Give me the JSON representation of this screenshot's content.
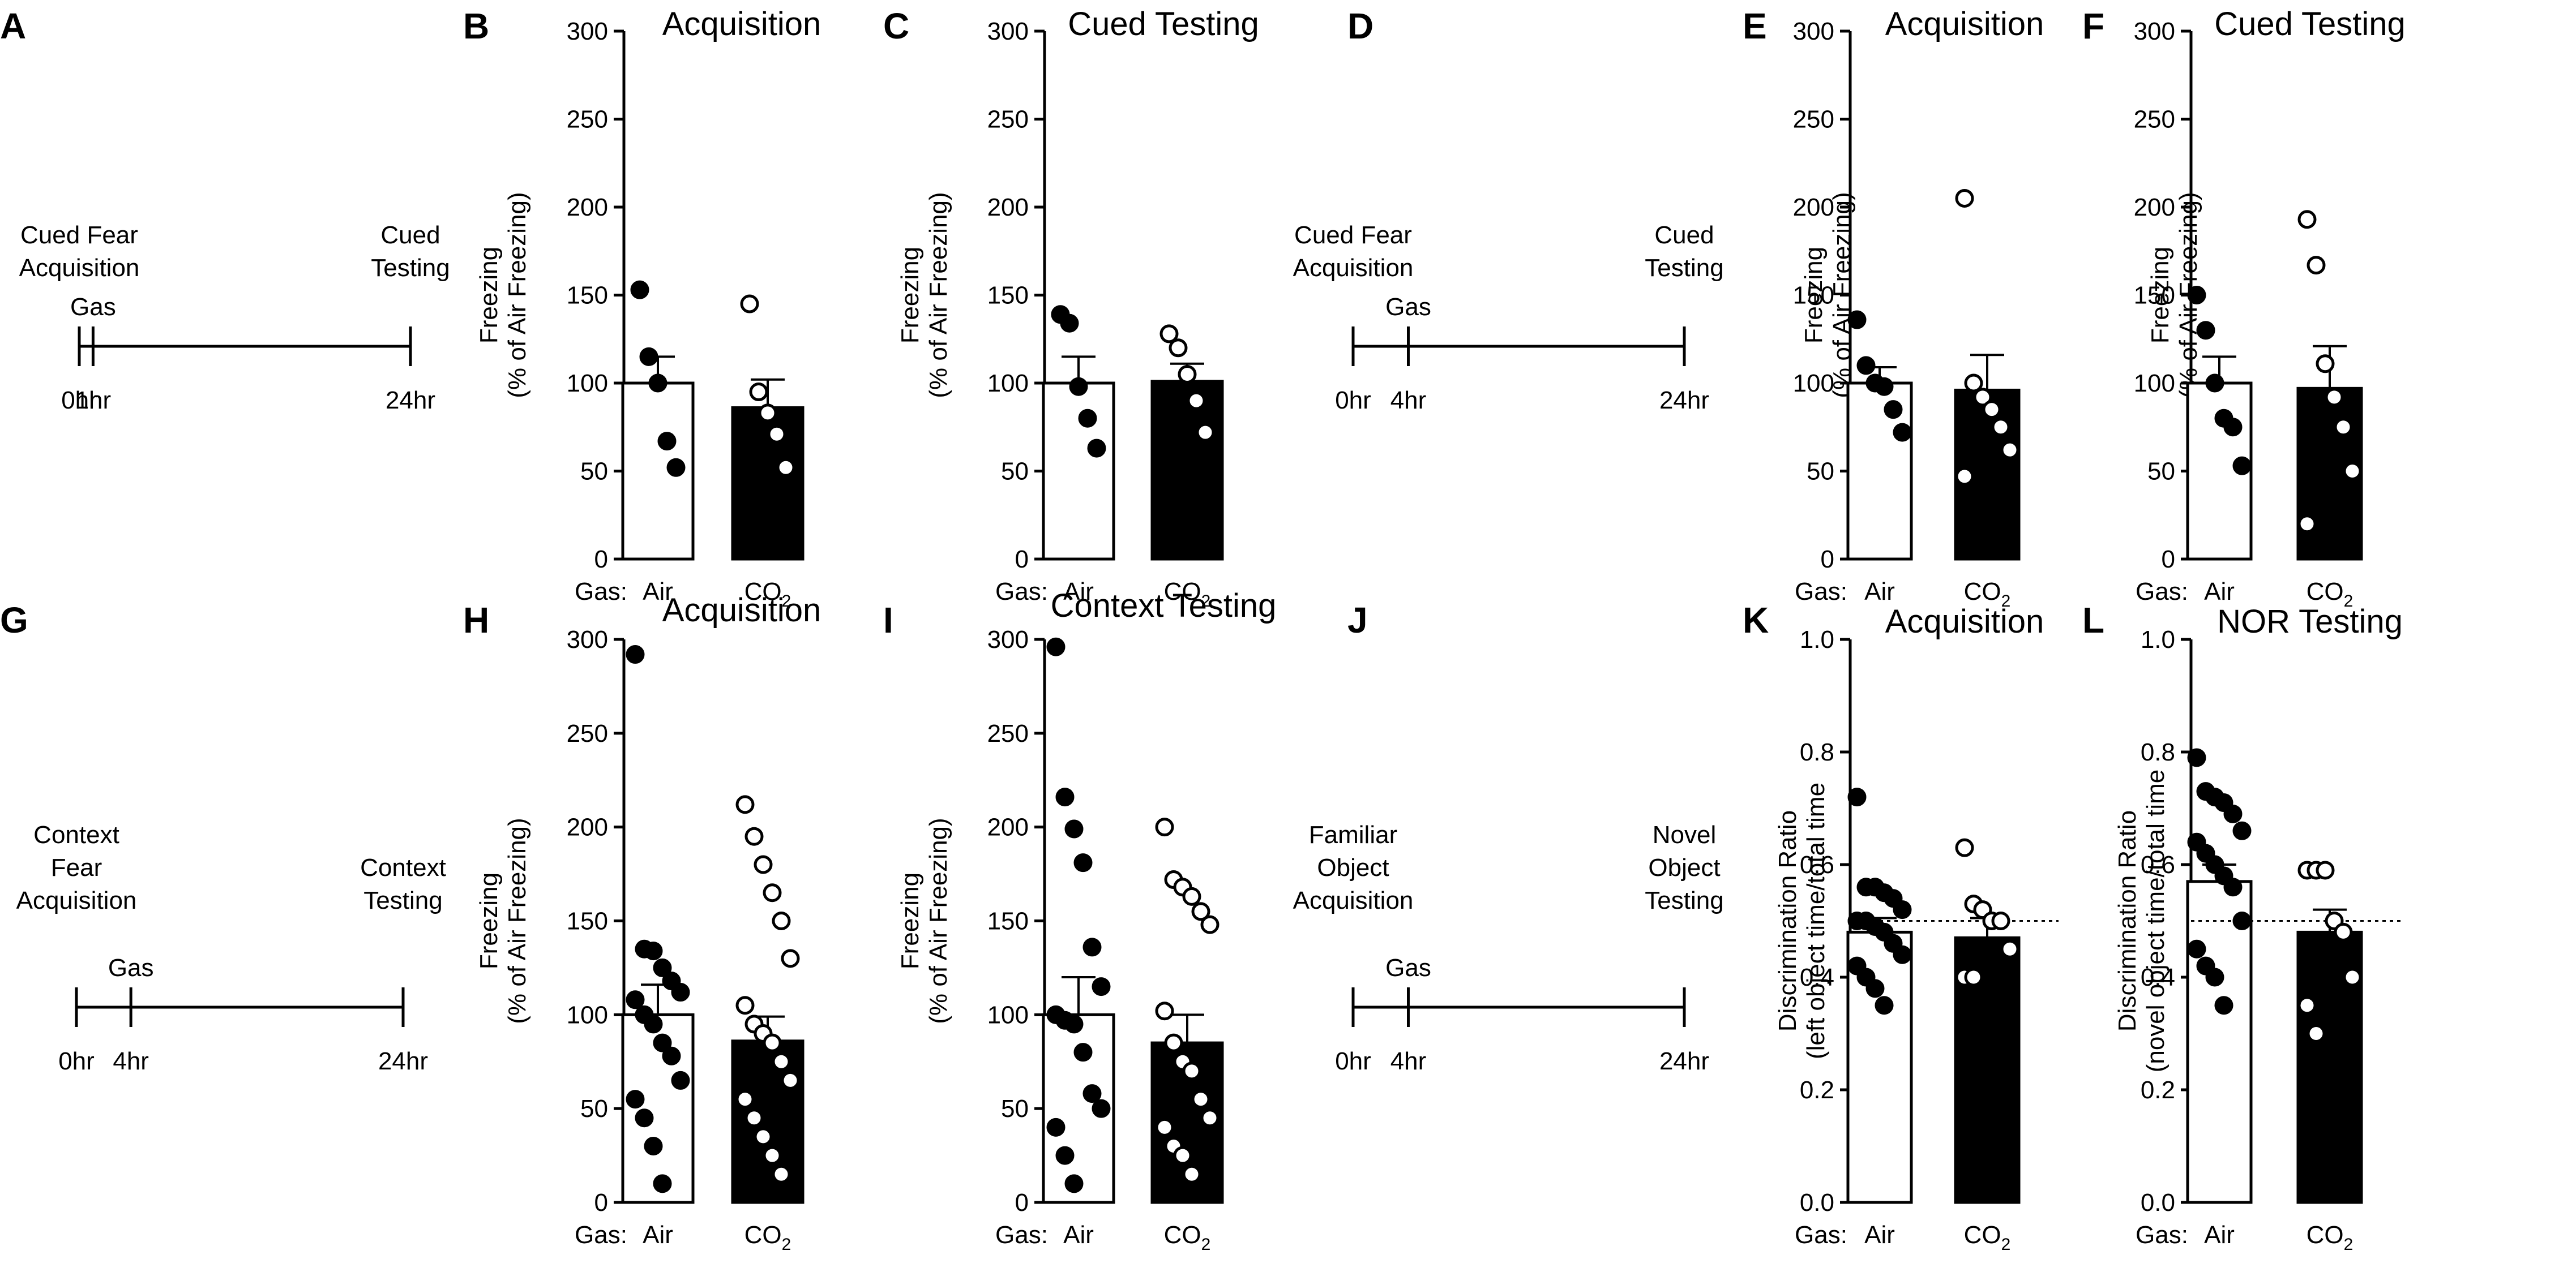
{
  "gas_label": "Gas:",
  "panels": {
    "A": {
      "label": "A"
    },
    "D": {
      "label": "D"
    },
    "G": {
      "label": "G"
    },
    "J": {
      "label": "J"
    }
  },
  "timelines": [
    {
      "panel": "A",
      "left_text": [
        "Cued Fear",
        "Acquisition"
      ],
      "right_text": [
        "Cued",
        "Testing"
      ],
      "gas": "Gas",
      "ticks": [
        {
          "pos": 0,
          "label": "0hr"
        },
        {
          "pos": 1,
          "label": "1hr"
        },
        {
          "pos": 24,
          "label": "24hr"
        }
      ]
    },
    {
      "panel": "D",
      "left_text": [
        "Cued Fear",
        "Acquisition"
      ],
      "right_text": [
        "Cued",
        "Testing"
      ],
      "gas": "Gas",
      "ticks": [
        {
          "pos": 0,
          "label": "0hr"
        },
        {
          "pos": 4,
          "label": "4hr"
        },
        {
          "pos": 24,
          "label": "24hr"
        }
      ]
    },
    {
      "panel": "G",
      "left_text": [
        "Context",
        "Fear",
        "Acquisition"
      ],
      "right_text": [
        "Context",
        "Testing"
      ],
      "gas": "Gas",
      "ticks": [
        {
          "pos": 0,
          "label": "0hr"
        },
        {
          "pos": 4,
          "label": "4hr"
        },
        {
          "pos": 24,
          "label": "24hr"
        }
      ]
    },
    {
      "panel": "J",
      "left_text": [
        "Familiar",
        "Object",
        "Acquisition"
      ],
      "right_text": [
        "Novel",
        "Object",
        "Testing"
      ],
      "gas": "Gas",
      "ticks": [
        {
          "pos": 0,
          "label": "0hr"
        },
        {
          "pos": 4,
          "label": "4hr"
        },
        {
          "pos": 24,
          "label": "24hr"
        }
      ]
    }
  ],
  "chart_data": [
    {
      "panel": "B",
      "type": "bar",
      "title": "Acquisition",
      "ylabel": [
        "Freezing",
        "(% of Air Freezing)"
      ],
      "ylim": [
        0,
        300
      ],
      "yticks": [
        0,
        50,
        100,
        150,
        200,
        250,
        300
      ],
      "categories": [
        "Air",
        "CO2"
      ],
      "values": [
        100,
        86
      ],
      "sem": [
        15,
        16
      ],
      "points": [
        [
          153,
          115,
          100,
          67,
          52
        ],
        [
          145,
          95,
          83,
          71,
          52
        ]
      ]
    },
    {
      "panel": "C",
      "type": "bar",
      "title": "Cued Testing",
      "ylabel": [
        "Freezing",
        "(% of Air Freezing)"
      ],
      "ylim": [
        0,
        300
      ],
      "yticks": [
        0,
        50,
        100,
        150,
        200,
        250,
        300
      ],
      "categories": [
        "Air",
        "CO2"
      ],
      "values": [
        100,
        101
      ],
      "sem": [
        15,
        10
      ],
      "points": [
        [
          139,
          134,
          98,
          80,
          63
        ],
        [
          128,
          120,
          105,
          90,
          72
        ]
      ]
    },
    {
      "panel": "E",
      "type": "bar",
      "title": "Acquisition",
      "ylabel": [
        "Freezing",
        "(% of Air Freezing)"
      ],
      "ylim": [
        0,
        300
      ],
      "yticks": [
        0,
        50,
        100,
        150,
        200,
        250,
        300
      ],
      "categories": [
        "Air",
        "CO2"
      ],
      "values": [
        100,
        96
      ],
      "sem": [
        9,
        20
      ],
      "points": [
        [
          136,
          110,
          100,
          98,
          85,
          72
        ],
        [
          205,
          100,
          92,
          85,
          75,
          62,
          47
        ]
      ]
    },
    {
      "panel": "F",
      "type": "bar",
      "title": "Cued Testing",
      "ylabel": [
        "Freezing",
        "(% of Air Freezing)"
      ],
      "ylim": [
        0,
        300
      ],
      "yticks": [
        0,
        50,
        100,
        150,
        200,
        250,
        300
      ],
      "categories": [
        "Air",
        "CO2"
      ],
      "values": [
        100,
        97
      ],
      "sem": [
        15,
        24
      ],
      "points": [
        [
          150,
          130,
          100,
          80,
          75,
          53
        ],
        [
          193,
          167,
          111,
          92,
          75,
          50,
          20
        ]
      ]
    },
    {
      "panel": "H",
      "type": "bar",
      "title": "Acquisition",
      "ylabel": [
        "Freezing",
        "(% of Air Freezing)"
      ],
      "ylim": [
        0,
        300
      ],
      "yticks": [
        0,
        50,
        100,
        150,
        200,
        250,
        300
      ],
      "categories": [
        "Air",
        "CO2"
      ],
      "values": [
        100,
        86
      ],
      "sem": [
        16,
        13
      ],
      "points": [
        [
          292,
          135,
          134,
          125,
          118,
          112,
          108,
          100,
          95,
          85,
          78,
          65,
          55,
          45,
          30,
          10
        ],
        [
          212,
          195,
          180,
          165,
          150,
          130,
          105,
          95,
          90,
          85,
          75,
          65,
          55,
          45,
          35,
          25,
          15
        ]
      ]
    },
    {
      "panel": "I",
      "type": "bar",
      "title": "Context Testing",
      "ylabel": [
        "Freezing",
        "(% of Air Freezing)"
      ],
      "ylim": [
        0,
        300
      ],
      "yticks": [
        0,
        50,
        100,
        150,
        200,
        250,
        300
      ],
      "categories": [
        "Air",
        "CO2"
      ],
      "values": [
        100,
        85
      ],
      "sem": [
        20,
        15
      ],
      "points": [
        [
          296,
          216,
          199,
          181,
          136,
          115,
          100,
          97,
          95,
          80,
          58,
          50,
          40,
          25,
          10
        ],
        [
          200,
          172,
          168,
          163,
          155,
          148,
          102,
          85,
          75,
          70,
          55,
          45,
          40,
          30,
          25,
          15
        ]
      ]
    },
    {
      "panel": "K",
      "type": "bar",
      "title": "Acquisition",
      "ylabel": [
        "Discrimination Ratio",
        "(left object time/total time"
      ],
      "ylim": [
        0,
        1.0
      ],
      "yticks": [
        0.0,
        0.2,
        0.4,
        0.6,
        0.8,
        1.0
      ],
      "dotted_line": 0.5,
      "categories": [
        "Air",
        "CO2"
      ],
      "values": [
        0.48,
        0.47
      ],
      "sem": [
        0.025,
        0.035
      ],
      "points": [
        [
          0.72,
          0.56,
          0.56,
          0.55,
          0.54,
          0.52,
          0.5,
          0.5,
          0.49,
          0.48,
          0.46,
          0.44,
          0.42,
          0.4,
          0.38,
          0.35
        ],
        [
          0.63,
          0.53,
          0.52,
          0.5,
          0.5,
          0.45,
          0.4,
          0.4
        ]
      ]
    },
    {
      "panel": "L",
      "type": "bar",
      "title": "NOR Testing",
      "ylabel": [
        "Discrimination Ratio",
        "(novel object time/total time"
      ],
      "ylim": [
        0,
        1.0
      ],
      "yticks": [
        0.0,
        0.2,
        0.4,
        0.6,
        0.8,
        1.0
      ],
      "dotted_line": 0.5,
      "categories": [
        "Air",
        "CO2"
      ],
      "values": [
        0.57,
        0.48
      ],
      "sem": [
        0.03,
        0.04
      ],
      "points": [
        [
          0.79,
          0.73,
          0.72,
          0.71,
          0.69,
          0.66,
          0.64,
          0.62,
          0.6,
          0.58,
          0.56,
          0.5,
          0.45,
          0.42,
          0.4,
          0.35
        ],
        [
          0.59,
          0.59,
          0.59,
          0.5,
          0.48,
          0.4,
          0.35,
          0.3
        ]
      ]
    }
  ]
}
